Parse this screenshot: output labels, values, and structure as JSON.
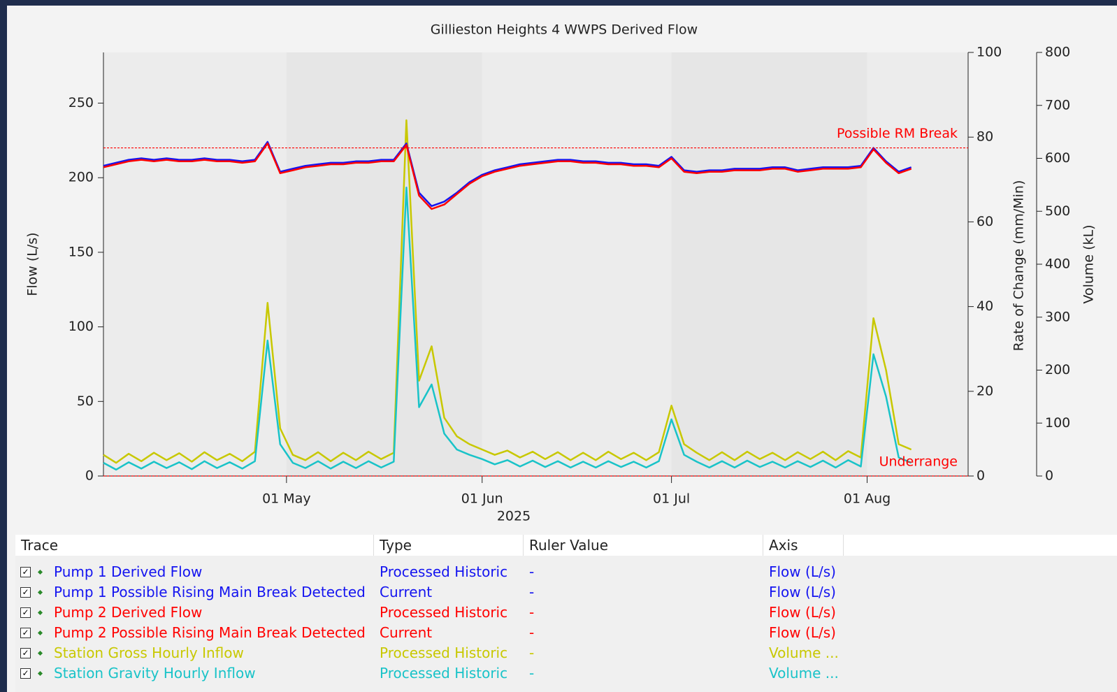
{
  "chart_data": {
    "type": "line",
    "title": "Gillieston Heights 4 WWPS Derived Flow",
    "xlabel": "2025",
    "ylabel": "Flow (L/s)",
    "y2label": "Rate of Change (mm/Min)",
    "y3label": "Volume (kL)",
    "xlim": [
      "2025-04-02",
      "2025-08-17"
    ],
    "xticks": [
      {
        "value": "2025-05-01",
        "label": "01 May"
      },
      {
        "value": "2025-06-01",
        "label": "01 Jun"
      },
      {
        "value": "2025-07-01",
        "label": "01 Jul"
      },
      {
        "value": "2025-08-01",
        "label": "01 Aug"
      }
    ],
    "ylim": [
      0,
      284
    ],
    "yticks": [
      0,
      50,
      100,
      150,
      200,
      250
    ],
    "y2lim": [
      0,
      100
    ],
    "y2ticks": [
      0,
      20,
      40,
      60,
      80,
      100
    ],
    "y3lim": [
      0,
      800
    ],
    "y3ticks": [
      0,
      100,
      200,
      300,
      400,
      500,
      600,
      700,
      800
    ],
    "thresholds": [
      {
        "label": "Possible RM Break",
        "value": 220,
        "color": "#ff0000"
      },
      {
        "label": "Underrange",
        "value": 0,
        "color": "#ff0000"
      }
    ],
    "x": [
      "2025-04-02",
      "2025-04-04",
      "2025-04-06",
      "2025-04-08",
      "2025-04-10",
      "2025-04-12",
      "2025-04-14",
      "2025-04-16",
      "2025-04-18",
      "2025-04-20",
      "2025-04-22",
      "2025-04-24",
      "2025-04-26",
      "2025-04-28",
      "2025-04-30",
      "2025-05-02",
      "2025-05-04",
      "2025-05-06",
      "2025-05-08",
      "2025-05-10",
      "2025-05-12",
      "2025-05-14",
      "2025-05-16",
      "2025-05-18",
      "2025-05-20",
      "2025-05-22",
      "2025-05-24",
      "2025-05-26",
      "2025-05-28",
      "2025-05-30",
      "2025-06-01",
      "2025-06-03",
      "2025-06-05",
      "2025-06-07",
      "2025-06-09",
      "2025-06-11",
      "2025-06-13",
      "2025-06-15",
      "2025-06-17",
      "2025-06-19",
      "2025-06-21",
      "2025-06-23",
      "2025-06-25",
      "2025-06-27",
      "2025-06-29",
      "2025-07-01",
      "2025-07-03",
      "2025-07-05",
      "2025-07-07",
      "2025-07-09",
      "2025-07-11",
      "2025-07-13",
      "2025-07-15",
      "2025-07-17",
      "2025-07-19",
      "2025-07-21",
      "2025-07-23",
      "2025-07-25",
      "2025-07-27",
      "2025-07-29",
      "2025-07-31",
      "2025-08-02",
      "2025-08-04",
      "2025-08-06",
      "2025-08-08"
    ],
    "series": [
      {
        "name": "Station Gross Hourly Inflow",
        "color": "#c8c800",
        "axis": "y3",
        "values": [
          40,
          25,
          42,
          28,
          44,
          30,
          43,
          27,
          45,
          30,
          42,
          28,
          46,
          327,
          90,
          40,
          30,
          45,
          28,
          44,
          30,
          46,
          32,
          44,
          672,
          180,
          245,
          110,
          75,
          60,
          50,
          40,
          48,
          35,
          46,
          32,
          45,
          30,
          44,
          30,
          46,
          32,
          44,
          30,
          45,
          133,
          60,
          44,
          30,
          45,
          30,
          46,
          32,
          44,
          30,
          45,
          32,
          46,
          30,
          47,
          35,
          298,
          200,
          60,
          50
        ]
      },
      {
        "name": "Station Gravity Hourly Inflow",
        "color": "#19c3c8",
        "axis": "y3",
        "values": [
          25,
          12,
          26,
          14,
          27,
          15,
          26,
          13,
          28,
          15,
          26,
          14,
          28,
          256,
          60,
          25,
          15,
          28,
          14,
          27,
          15,
          28,
          16,
          27,
          545,
          130,
          173,
          80,
          50,
          40,
          32,
          22,
          30,
          18,
          29,
          17,
          28,
          16,
          27,
          16,
          28,
          17,
          27,
          16,
          28,
          107,
          40,
          27,
          16,
          28,
          16,
          29,
          17,
          27,
          16,
          28,
          17,
          29,
          16,
          30,
          18,
          230,
          150,
          35,
          25
        ]
      },
      {
        "name": "Pump 1 Derived Flow",
        "color": "#1414f0",
        "axis": "y",
        "values": [
          208,
          210,
          212,
          213,
          212,
          213,
          212,
          212,
          213,
          212,
          212,
          211,
          212,
          224,
          204,
          206,
          208,
          209,
          210,
          210,
          211,
          211,
          212,
          212,
          223,
          190,
          181,
          184,
          190,
          197,
          202,
          205,
          207,
          209,
          210,
          211,
          212,
          212,
          211,
          211,
          210,
          210,
          209,
          209,
          208,
          214,
          205,
          204,
          205,
          205,
          206,
          206,
          206,
          207,
          207,
          205,
          206,
          207,
          207,
          207,
          208,
          220,
          211,
          204,
          207
        ]
      },
      {
        "name": "Pump 2 Derived Flow",
        "color": "#ff0000",
        "axis": "y",
        "values": [
          207,
          209,
          211,
          212,
          211,
          212,
          211,
          211,
          212,
          211,
          211,
          210,
          211,
          223,
          203,
          205,
          207,
          208,
          209,
          209,
          210,
          210,
          211,
          211,
          222,
          188,
          179,
          182,
          189,
          196,
          201,
          204,
          206,
          208,
          209,
          210,
          211,
          211,
          210,
          210,
          209,
          209,
          208,
          208,
          207,
          213,
          204,
          203,
          204,
          204,
          205,
          205,
          205,
          206,
          206,
          204,
          205,
          206,
          206,
          206,
          207,
          219,
          210,
          203,
          206
        ]
      }
    ]
  },
  "table": {
    "columns": [
      "Trace",
      "Type",
      "Ruler Value",
      "Axis"
    ],
    "rows": [
      [
        "Pump 1 Derived Flow",
        "Processed Historic",
        "-",
        "Flow (L/s)"
      ],
      [
        "Pump 1 Possible Rising Main Break Detected",
        "Current",
        "-",
        "Flow (L/s)"
      ],
      [
        "Pump 2 Derived Flow",
        "Processed Historic",
        "-",
        "Flow (L/s)"
      ],
      [
        "Pump 2 Possible Rising Main Break Detected",
        "Current",
        "-",
        "Flow (L/s)"
      ],
      [
        "Station Gross Hourly Inflow",
        "Processed Historic",
        "-",
        "Volume ..."
      ],
      [
        "Station Gravity Hourly Inflow",
        "Processed Historic",
        "-",
        "Volume ..."
      ]
    ],
    "row_colors": [
      "#1414f0",
      "#1414f0",
      "#ff0000",
      "#ff0000",
      "#c8c800",
      "#19c3c8"
    ]
  }
}
